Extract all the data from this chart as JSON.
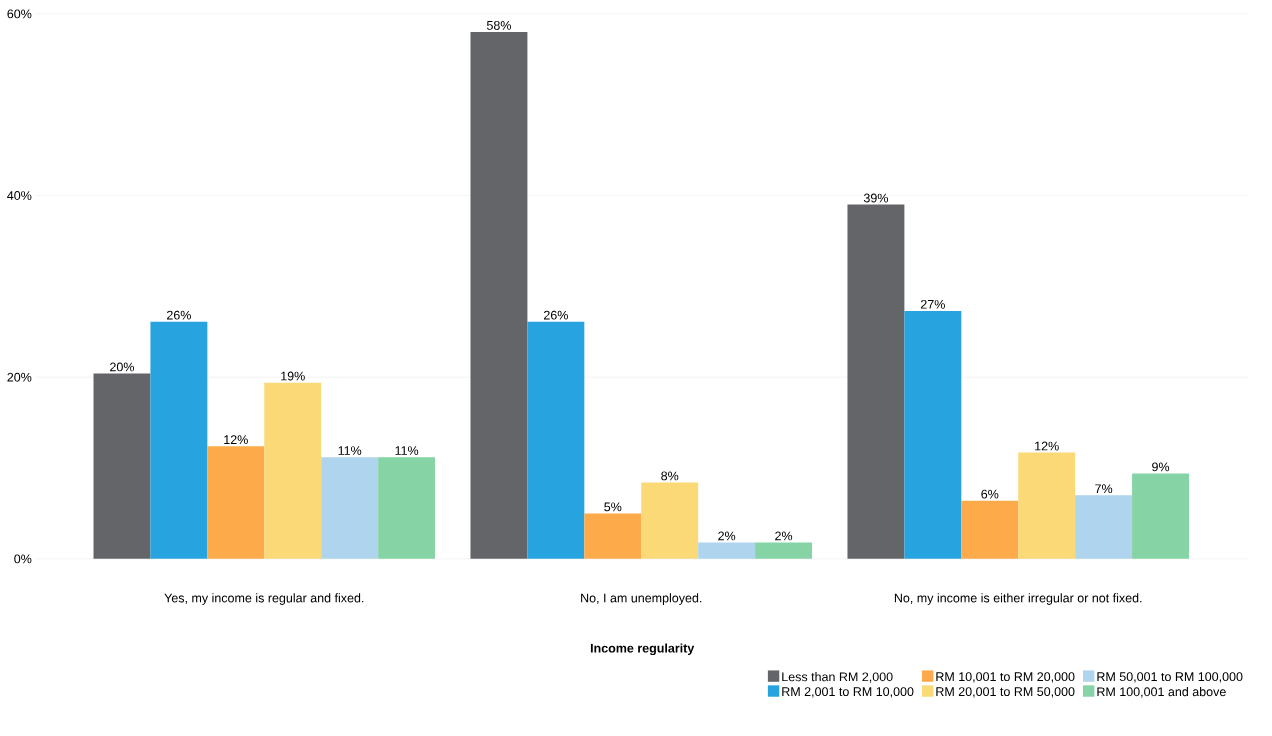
{
  "chart_data": {
    "type": "bar",
    "xlabel": "Income regularity",
    "categories": [
      "Yes, my income is regular and fixed.",
      "No, I am unemployed.",
      "No, my income is either irregular or not fixed."
    ],
    "ylim": [
      0,
      60
    ],
    "yticks": [
      {
        "value": 0,
        "label": "0%"
      },
      {
        "value": 20,
        "label": "20%"
      },
      {
        "value": 40,
        "label": "40%"
      },
      {
        "value": 60,
        "label": "60%"
      }
    ],
    "grid": "y",
    "legend": "bottom right",
    "series": [
      {
        "name": "Less than RM 2,000",
        "color": "#646568",
        "values": [
          20.4,
          58.0,
          39.0
        ],
        "value_labels": [
          "20%",
          "58%",
          "39%"
        ]
      },
      {
        "name": "RM 2,001 to RM 10,000",
        "color": "#27a3df",
        "values": [
          26.1,
          26.1,
          27.3
        ],
        "value_labels": [
          "26%",
          "26%",
          "27%"
        ]
      },
      {
        "name": "RM 10,001 to RM 20,000",
        "color": "#fdaa4a",
        "values": [
          12.4,
          5.0,
          6.4
        ],
        "value_labels": [
          "12%",
          "5%",
          "6%"
        ]
      },
      {
        "name": "RM 20,001 to RM 50,000",
        "color": "#fbd977",
        "values": [
          19.4,
          8.4,
          11.7
        ],
        "value_labels": [
          "19%",
          "8%",
          "12%"
        ]
      },
      {
        "name": "RM 50,001 to RM 100,000",
        "color": "#aed4ee",
        "values": [
          11.2,
          1.8,
          7.0
        ],
        "value_labels": [
          "11%",
          "2%",
          "7%"
        ]
      },
      {
        "name": "RM 100,001 and above",
        "color": "#86d3a5",
        "values": [
          11.2,
          1.8,
          9.4
        ],
        "value_labels": [
          "11%",
          "2%",
          "9%"
        ]
      }
    ]
  }
}
